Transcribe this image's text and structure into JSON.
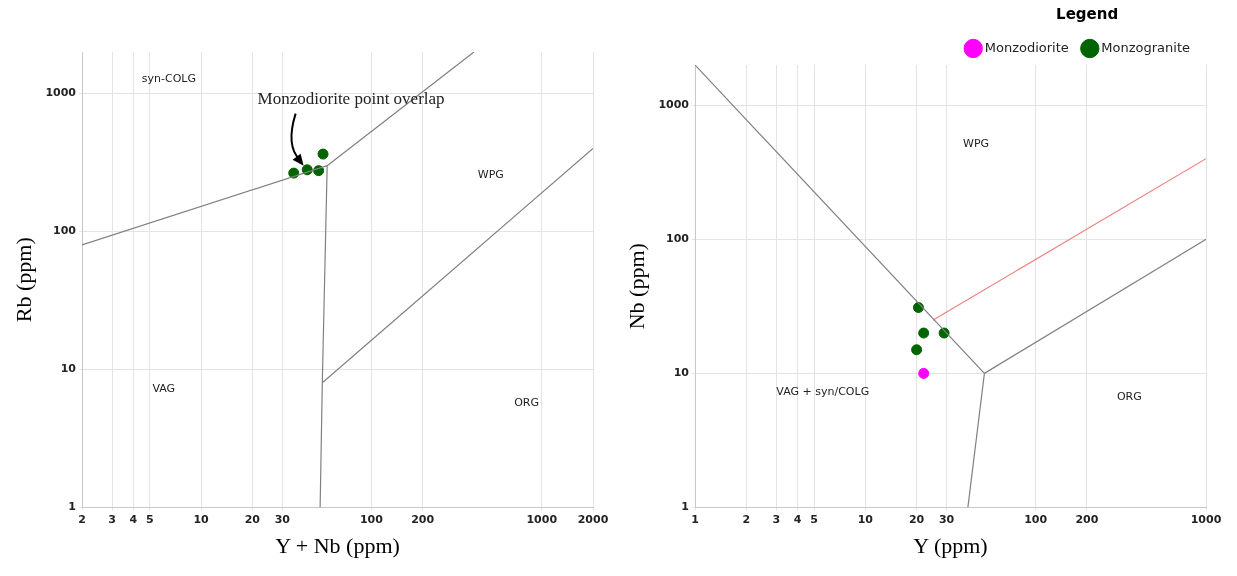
{
  "chart_data": [
    {
      "type": "scatter",
      "xlabel": "Y + Nb (ppm)",
      "ylabel": "Rb (ppm)",
      "log": "xy",
      "grid": true,
      "legend": false,
      "xlim": [
        2,
        2000
      ],
      "ylim": [
        1,
        2000
      ],
      "xticks": [
        2,
        3,
        4,
        5,
        10,
        20,
        30,
        100,
        200,
        1000,
        2000
      ],
      "yticks": [
        1,
        10,
        100,
        1000
      ],
      "series": [
        {
          "type": "line",
          "marker": "none",
          "color": "#808080",
          "x": [
            2,
            55,
            400,
            null,
            55,
            51.5,
            50,
            null,
            51.5,
            2000
          ],
          "values": [
            80,
            300,
            2000,
            null,
            300,
            8,
            1,
            null,
            8,
            400
          ]
        },
        {
          "type": "scatter",
          "marker": "circle",
          "color": "#006400",
          "x": [
            35,
            42,
            49,
            52
          ],
          "values": [
            265,
            280,
            276,
            364
          ]
        }
      ],
      "annotations": [
        "syn-COLG",
        "WPG",
        "VAG",
        "ORG",
        {
          "text": "Monzodiorite point overlap",
          "x": 40,
          "y": 300
        }
      ]
    },
    {
      "type": "scatter",
      "xlabel": "Y (ppm)",
      "ylabel": "Nb (ppm)",
      "log": "xy",
      "grid": true,
      "legend": "top right",
      "legend_title": "Legend",
      "xlim": [
        1,
        1000
      ],
      "ylim": [
        1,
        2000
      ],
      "xticks": [
        1,
        2,
        3,
        4,
        5,
        10,
        20,
        30,
        100,
        200,
        1000
      ],
      "yticks": [
        1,
        10,
        100,
        1000
      ],
      "series": [
        {
          "type": "line",
          "marker": "none",
          "color": "#808080",
          "x": [
            1,
            50,
            1000,
            null,
            50,
            40
          ],
          "values": [
            2000,
            10,
            100,
            null,
            10,
            1
          ]
        },
        {
          "type": "line",
          "marker": "none",
          "color": "#f08080",
          "x": [
            25,
            1000
          ],
          "values": [
            25,
            400
          ]
        },
        {
          "type": "scatter",
          "marker": "circle",
          "name": "Monzodiorite",
          "color": "#ff00ff",
          "x": [
            22
          ],
          "values": [
            10
          ]
        },
        {
          "type": "scatter",
          "marker": "circle",
          "name": "Monzogranite",
          "color": "#006400",
          "x": [
            20.5,
            22,
            29,
            20
          ],
          "values": [
            31,
            20,
            20,
            15
          ]
        }
      ],
      "annotations": [
        "WPG",
        "VAG + syn/COLG",
        "ORG"
      ]
    }
  ]
}
